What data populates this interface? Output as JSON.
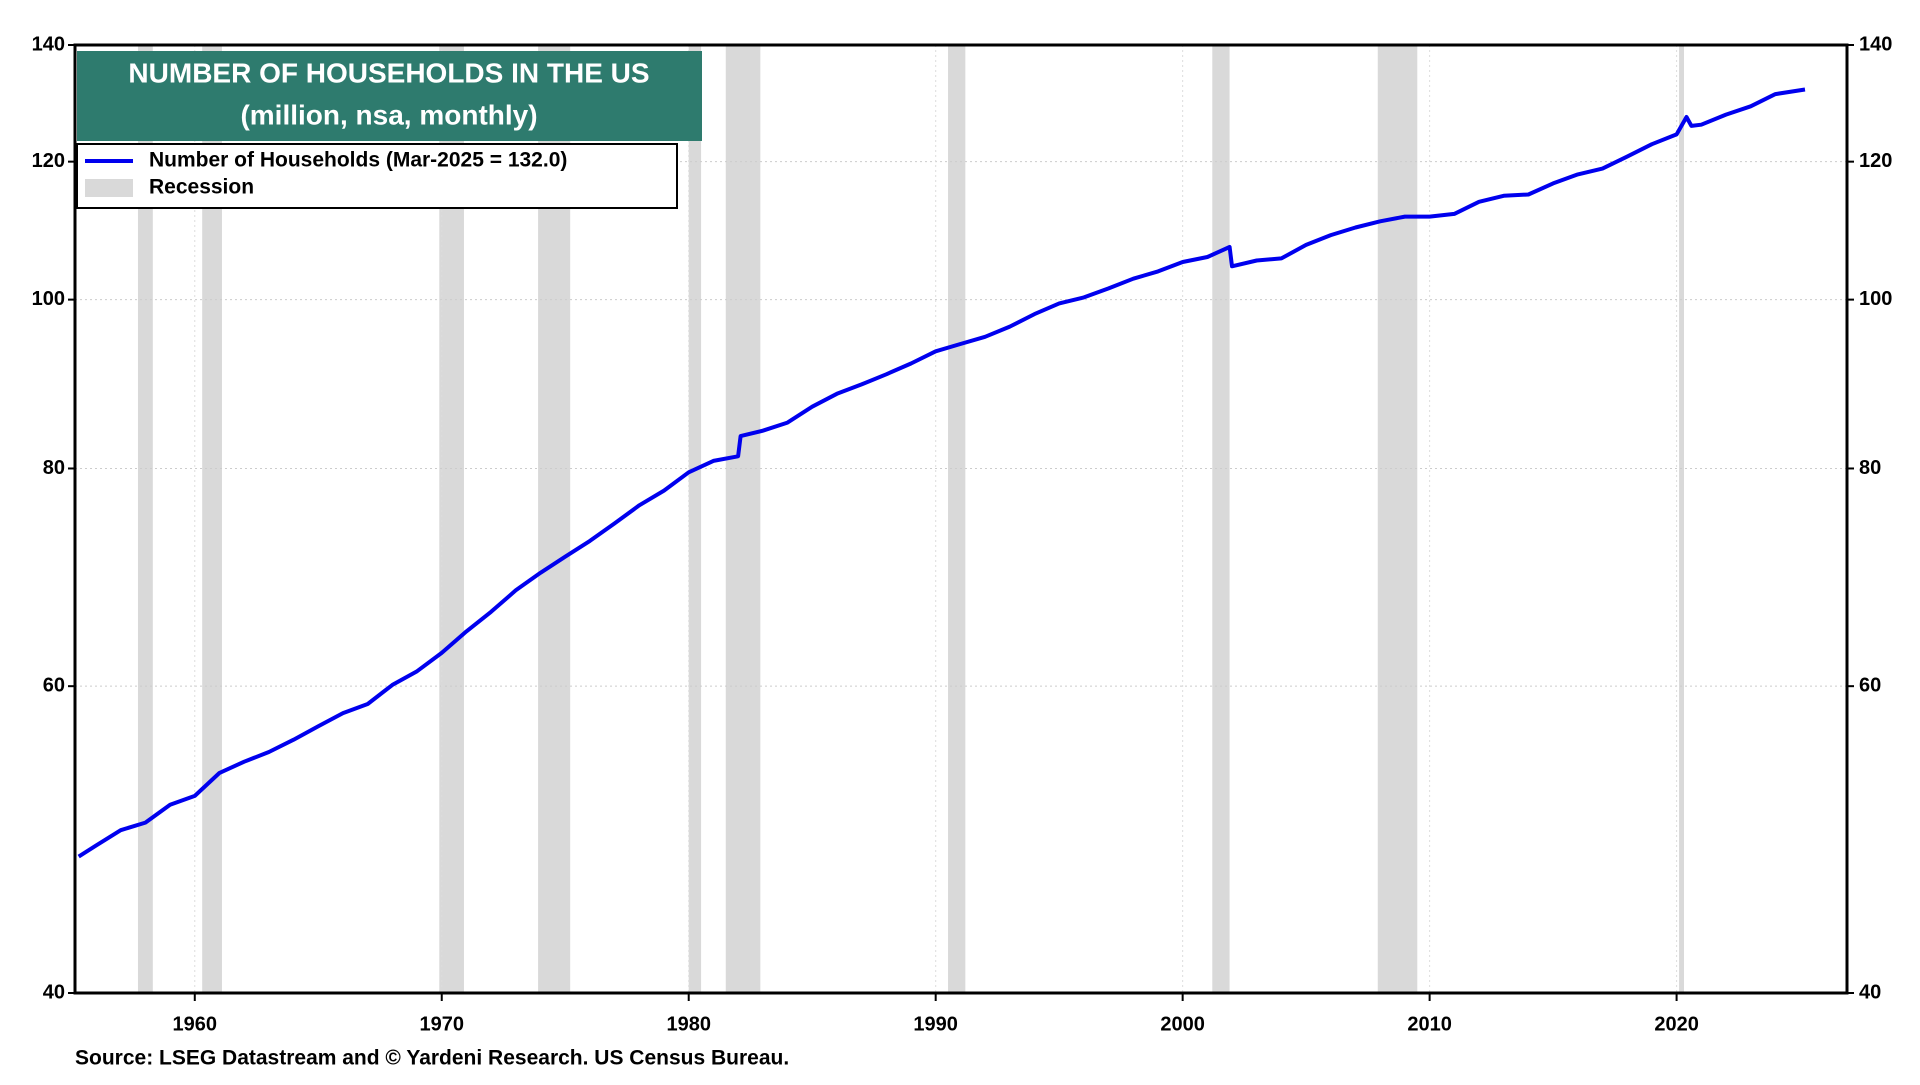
{
  "chart_data": {
    "type": "line",
    "title": "NUMBER OF HOUSEHOLDS IN THE US",
    "subtitle": "(million, nsa, monthly)",
    "source": "Source: LSEG Datastream and © Yardeni Research. US Census Bureau.",
    "log_scale": true,
    "grid": true,
    "legend_position": "upper left",
    "recession_label": "Recession",
    "recession_color": "#d9d9d9",
    "recessions": [
      [
        1957.7,
        1958.3
      ],
      [
        1960.3,
        1961.1
      ],
      [
        1969.9,
        1970.9
      ],
      [
        1973.9,
        1975.2
      ],
      [
        1980.0,
        1980.5
      ],
      [
        1981.5,
        1982.9
      ],
      [
        1990.5,
        1991.2
      ],
      [
        2001.2,
        2001.9
      ],
      [
        2007.9,
        2009.5
      ],
      [
        2020.1,
        2020.3
      ]
    ],
    "x": [
      1955.3,
      1956,
      1957,
      1958,
      1959,
      1960,
      1961,
      1962,
      1963,
      1964,
      1965,
      1966,
      1967,
      1968,
      1969,
      1970,
      1971,
      1972,
      1973,
      1974,
      1975,
      1976,
      1977,
      1978,
      1979,
      1980,
      1981,
      1982.0,
      1982.1,
      1983,
      1984,
      1985,
      1986,
      1987,
      1988,
      1989,
      1990,
      1991,
      1992,
      1993,
      1994,
      1995,
      1996,
      1997,
      1998,
      1999,
      2000,
      2001,
      2001.9,
      2002.0,
      2003,
      2004,
      2005,
      2006,
      2007,
      2008,
      2009,
      2010,
      2011,
      2012,
      2013,
      2014,
      2015,
      2016,
      2017,
      2018,
      2019,
      2020.0,
      2020.4,
      2020.6,
      2021,
      2022,
      2023,
      2024,
      2025.2
    ],
    "series": [
      {
        "name": "Number of Households  (Mar-2025 = 132.0)",
        "color": "#0000ee",
        "values": [
          47.9,
          48.6,
          49.6,
          50.1,
          51.3,
          51.9,
          53.5,
          54.3,
          55.0,
          55.9,
          56.9,
          57.9,
          58.6,
          60.1,
          61.2,
          62.7,
          64.5,
          66.2,
          68.1,
          69.7,
          71.2,
          72.7,
          74.4,
          76.2,
          77.7,
          79.6,
          80.8,
          81.3,
          83.5,
          84.1,
          85.0,
          86.8,
          88.3,
          89.4,
          90.6,
          91.9,
          93.4,
          94.3,
          95.2,
          96.5,
          98.1,
          99.5,
          100.3,
          101.5,
          102.8,
          103.8,
          105.1,
          105.8,
          107.2,
          104.5,
          105.3,
          105.6,
          107.5,
          108.9,
          110.0,
          110.9,
          111.6,
          111.6,
          112.0,
          113.8,
          114.7,
          114.9,
          116.6,
          118.0,
          118.9,
          120.8,
          122.8,
          124.4,
          127.3,
          125.8,
          126.0,
          127.7,
          129.1,
          131.2,
          132.0
        ]
      }
    ],
    "xlim": [
      1955.15,
      2026.9
    ],
    "xticks": [
      1960,
      1970,
      1980,
      1990,
      2000,
      2010,
      2020
    ],
    "ylim": [
      40,
      140
    ],
    "yticks": [
      40,
      60,
      80,
      100,
      120,
      140
    ]
  }
}
